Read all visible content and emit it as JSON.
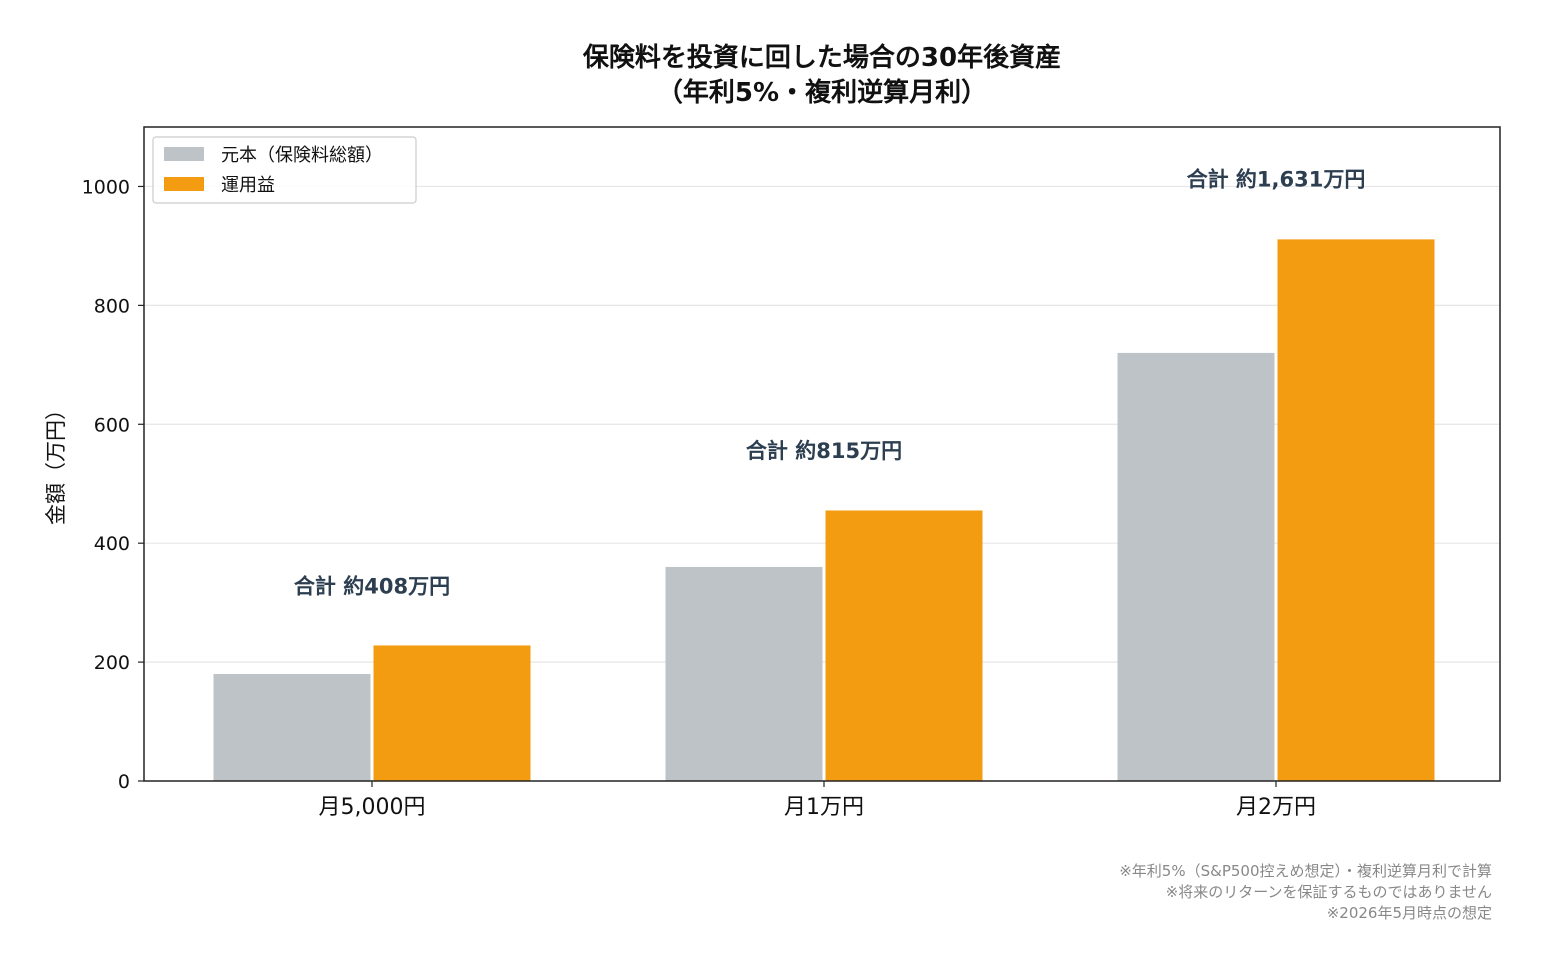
{
  "chart_data": {
    "type": "bar",
    "title_lines": [
      "保険料を投資に回した場合の30年後資産",
      "（年利5%・複利逆算月利）"
    ],
    "xlabel": "",
    "ylabel": "金額（万円）",
    "ylim": [
      0,
      1100
    ],
    "yticks": [
      0,
      200,
      400,
      600,
      800,
      1000
    ],
    "grid": true,
    "legend_position": "top-left",
    "categories": [
      "月5,000円",
      "月1万円",
      "月2万円"
    ],
    "series": [
      {
        "name": "元本（保険料総額）",
        "color": "#bdc3c7",
        "values": [
          180,
          360,
          720
        ]
      },
      {
        "name": "運用益",
        "color": "#f39c12",
        "values": [
          228,
          455,
          911
        ]
      }
    ],
    "annotations": [
      "合計 約408万円",
      "合計 約815万円",
      "合計 約1,631万円"
    ],
    "annotation_values": [
      315,
      543,
      1000
    ],
    "footnotes": [
      "※年利5%（S&P500控えめ想定）・複利逆算月利で計算",
      "※将来のリターンを保証するものではありません",
      "※2026年5月時点の想定"
    ]
  }
}
